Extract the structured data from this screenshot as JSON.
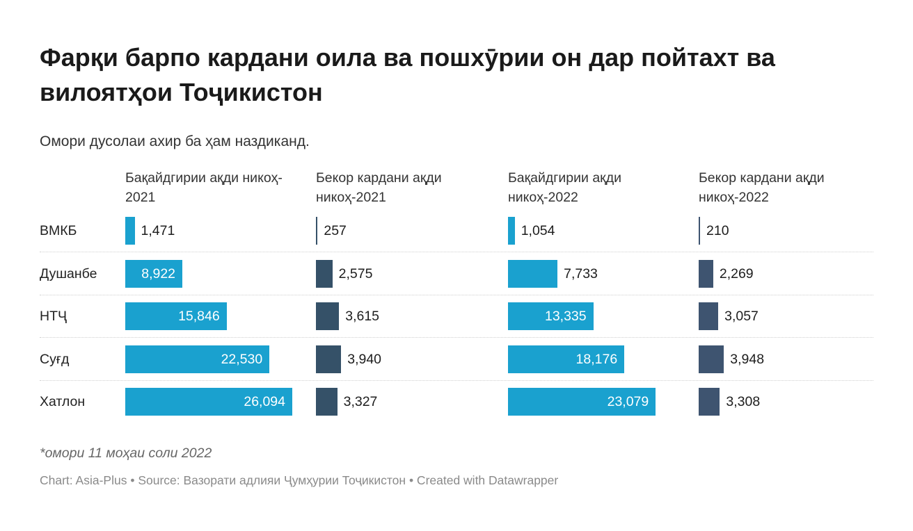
{
  "chart_data": {
    "type": "bar",
    "title": "Фарқи барпо кардани оила ва пошхӯрии он дар пойтахт ва вилоятҳои Тоҷикистон",
    "subtitle": "Омори дусолаи ахир ба ҳам наздиканд.",
    "categories": [
      "ВМКБ",
      "Душанбе",
      "НТҶ",
      "Суғд",
      "Хатлон"
    ],
    "series": [
      {
        "name": "Бақайдгирии ақди никоҳ- 2021",
        "color": "#1aa1cf",
        "values": [
          1471,
          8922,
          15846,
          22530,
          26094
        ],
        "labels": [
          "1,471",
          "8,922",
          "15,846",
          "22,530",
          "26,094"
        ]
      },
      {
        "name": "Бекор кардани ақди никоҳ-2021",
        "color": "#355168",
        "values": [
          257,
          2575,
          3615,
          3940,
          3327
        ],
        "labels": [
          "257",
          "2,575",
          "3,615",
          "3,940",
          "3,327"
        ]
      },
      {
        "name": "Бақайдгирии ақди никоҳ-2022",
        "color": "#1aa1cf",
        "values": [
          1054,
          7733,
          13335,
          18176,
          23079
        ],
        "labels": [
          "1,054",
          "7,733",
          "13,335",
          "18,176",
          "23,079"
        ]
      },
      {
        "name": "Бекор кардани ақди никоҳ-2022",
        "color": "#3e5470",
        "values": [
          210,
          2269,
          3057,
          3948,
          3308
        ],
        "labels": [
          "210",
          "2,269",
          "3,057",
          "3,948",
          "3,308"
        ]
      }
    ],
    "layout": "split-bars",
    "grid": false,
    "notes": "*омори 11 моҳаи соли 2022",
    "source": "Chart: Asia-Plus • Source: Вазорати адлияи Ҷумҳурии Тоҷикистон • Created with Datawrapper"
  }
}
